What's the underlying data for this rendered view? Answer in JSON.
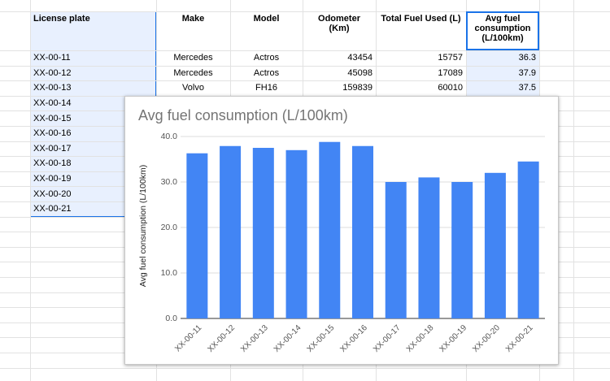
{
  "table": {
    "columns": [
      "License plate",
      "Make",
      "Model",
      "Odometer\n(Km)",
      "Total Fuel Used (L)",
      "Avg fuel\nconsumption\n(L/100km)"
    ],
    "rows": [
      [
        "XX-00-11",
        "Mercedes",
        "Actros",
        43454,
        15757,
        36.3
      ],
      [
        "XX-00-12",
        "Mercedes",
        "Actros",
        45098,
        17089,
        37.9
      ],
      [
        "XX-00-13",
        "Volvo",
        "FH16",
        159839,
        60010,
        37.5
      ],
      [
        "XX-00-14"
      ],
      [
        "XX-00-15"
      ],
      [
        "XX-00-16"
      ],
      [
        "XX-00-17"
      ],
      [
        "XX-00-18"
      ],
      [
        "XX-00-19"
      ],
      [
        "XX-00-20"
      ],
      [
        "XX-00-21"
      ]
    ]
  },
  "chart_data": {
    "type": "bar",
    "title": "Avg fuel consumption (L/100km)",
    "y_label": "Avg fuel consumption (L/100km)",
    "categories": [
      "XX-00-11",
      "XX-00-12",
      "XX-00-13",
      "XX-00-14",
      "XX-00-15",
      "XX-00-16",
      "XX-00-17",
      "XX-00-18",
      "XX-00-19",
      "XX-00-20",
      "XX-00-21"
    ],
    "values": [
      36.3,
      37.9,
      37.5,
      37.0,
      38.8,
      37.9,
      30.0,
      31.0,
      30.0,
      32.0,
      34.5
    ],
    "color": "#4285f4",
    "ylim": [
      0,
      40
    ],
    "yticks": [
      {
        "value": 0,
        "label": "0.0"
      },
      {
        "value": 10,
        "label": "10.0"
      },
      {
        "value": 20,
        "label": "20.0"
      },
      {
        "value": 30,
        "label": "30.0"
      },
      {
        "value": 40,
        "label": "40.0"
      }
    ],
    "grid": true
  }
}
